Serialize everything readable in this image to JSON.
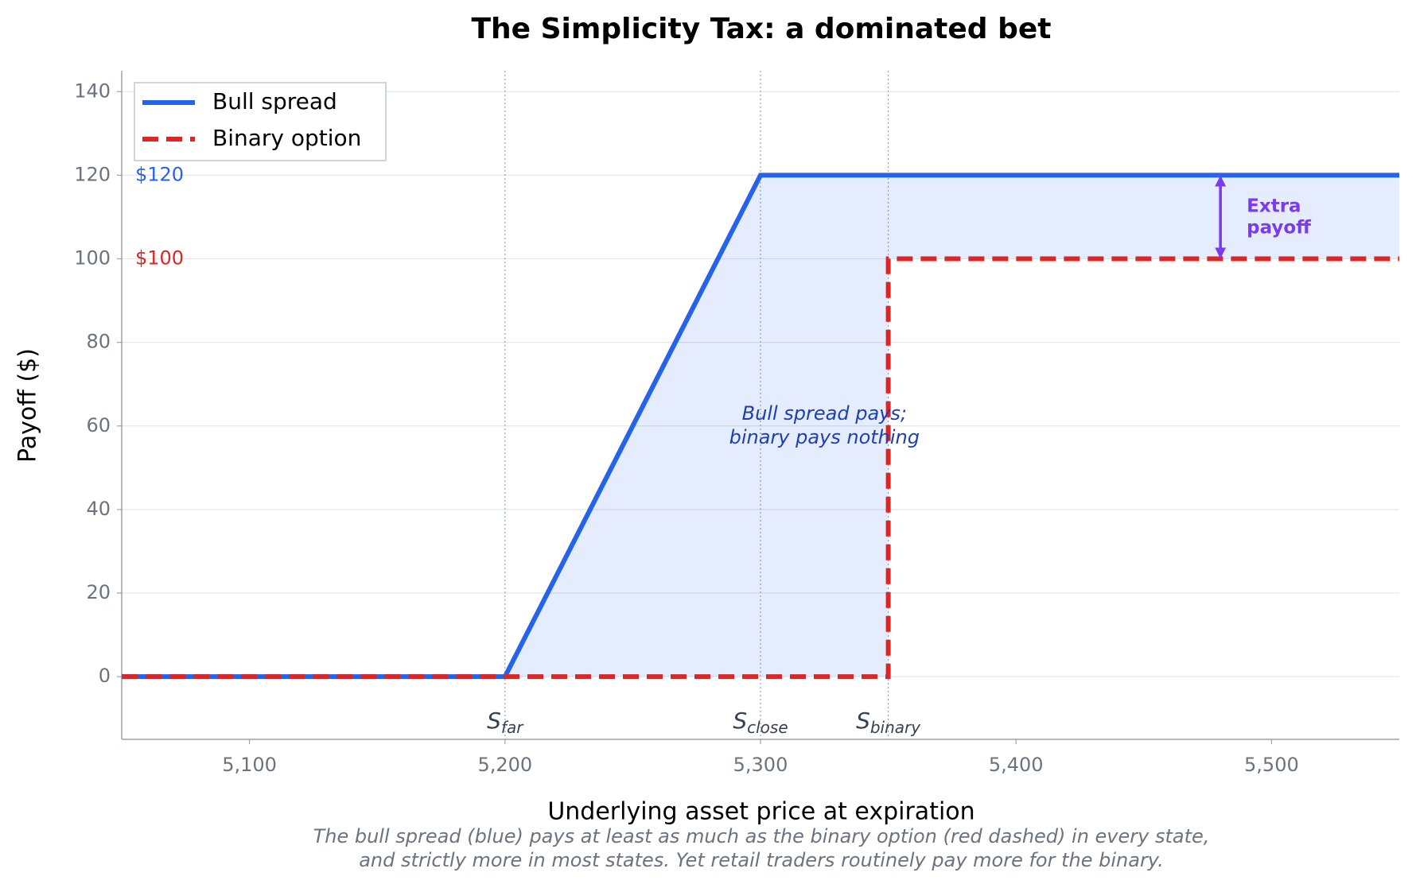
{
  "chart_data": {
    "type": "line",
    "title": "The Simplicity Tax: a dominated bet",
    "xlabel": "Underlying asset price at expiration",
    "ylabel": "Payoff ($)",
    "caption": [
      "The bull spread (blue) pays at least as much as the binary option (red dashed) in every state,",
      "and strictly more in most states. Yet retail traders routinely pay more for the binary."
    ],
    "series": [
      {
        "name": "Bull spread",
        "color": "#2563eb",
        "style": "solid",
        "x": [
          5050,
          5200,
          5300,
          5550
        ],
        "values": [
          0,
          0,
          120,
          120
        ]
      },
      {
        "name": "Binary option",
        "color": "#dc2626",
        "style": "dashed",
        "x": [
          5050,
          5350,
          5350,
          5550
        ],
        "values": [
          0,
          0,
          100,
          100
        ]
      }
    ],
    "fill_between_color": "#2563eb",
    "xlim": [
      5050,
      5550
    ],
    "ylim": [
      -15,
      145
    ],
    "xticks": [
      {
        "value": 5100,
        "label": "5,100"
      },
      {
        "value": 5200,
        "label": "5,200"
      },
      {
        "value": 5300,
        "label": "5,300"
      },
      {
        "value": 5400,
        "label": "5,400"
      },
      {
        "value": 5500,
        "label": "5,500"
      }
    ],
    "yticks": [
      0,
      20,
      40,
      60,
      80,
      100,
      120,
      140
    ],
    "grid": true,
    "legend": "upper left",
    "ref_lines": [
      {
        "x": 5200,
        "label": "S",
        "sub": "far"
      },
      {
        "x": 5300,
        "label": "S",
        "sub": "close"
      },
      {
        "x": 5350,
        "label": "S",
        "sub": "binary"
      }
    ],
    "level_labels": [
      {
        "value": 120,
        "label": "$120",
        "color": "#2563eb"
      },
      {
        "value": 100,
        "label": "$100",
        "color": "#dc2626"
      }
    ],
    "gap_annotation": {
      "lines": [
        "Extra",
        "payoff"
      ],
      "color": "#7c3aed"
    },
    "region_annotation": {
      "lines": [
        "Bull spread pays;",
        "binary pays nothing"
      ],
      "color": "#1e40af"
    }
  }
}
